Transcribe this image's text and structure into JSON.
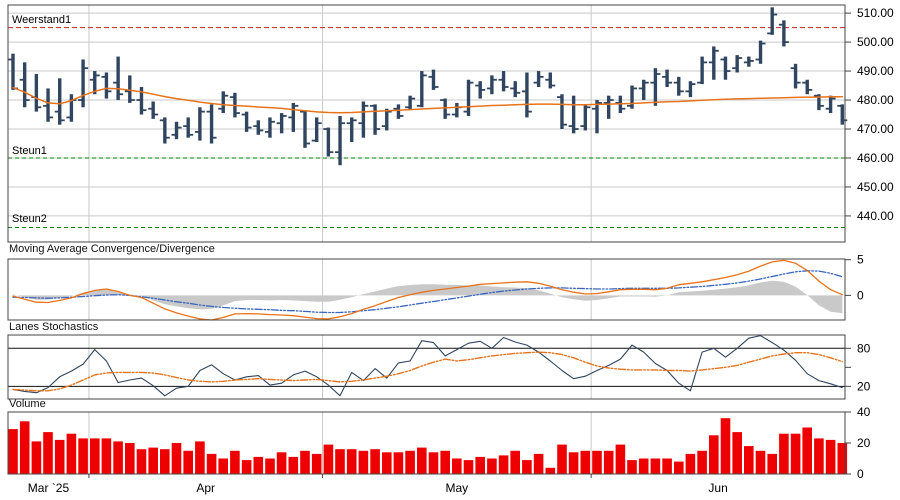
{
  "colors": {
    "bar": "#2F4560",
    "ma": "#E8731A",
    "volume": "#EE0000",
    "resistance": "#CC1F1F",
    "resistance_text": "#DC2A2A",
    "support": "#008000",
    "support_text": "#007A00",
    "macd_line": "#E8731A",
    "macd_signal": "#3A66C0",
    "macd_hist": "#C9C9C9",
    "stoch_k": "#2F4560",
    "stoch_d": "#E8731A",
    "grid": "#C9C9C9",
    "border": "#444444",
    "text": "#000000"
  },
  "chart_data": {
    "type": "ohlc",
    "panels_order": [
      "price",
      "macd",
      "stochastics",
      "volume"
    ],
    "x_axis": {
      "bar_count": 72,
      "months": [
        {
          "label": "Mar `25",
          "start_index": 0
        },
        {
          "label": "Apr",
          "start_index": 7
        },
        {
          "label": "May",
          "start_index": 27
        },
        {
          "label": "Jun",
          "start_index": 50
        }
      ]
    },
    "price_panel": {
      "y_ticks": [
        {
          "value": 510,
          "label": "510.00"
        },
        {
          "value": 500,
          "label": "500.00"
        },
        {
          "value": 490,
          "label": "490.00"
        },
        {
          "value": 480,
          "label": "480.00"
        },
        {
          "value": 470,
          "label": "470.00"
        },
        {
          "value": 460,
          "label": "460.00"
        },
        {
          "value": 450,
          "label": "450.00"
        },
        {
          "value": 440,
          "label": "440.00"
        }
      ],
      "range": [
        431,
        512.8
      ],
      "levels": {
        "resistance1": {
          "label": "Weerstand1",
          "value": 505
        },
        "support1": {
          "label": "Steun1",
          "value": 460
        },
        "support2": {
          "label": "Steun2",
          "value": 436
        }
      },
      "ohlc": [
        [
          494,
          496,
          483.5,
          484
        ],
        [
          487,
          493,
          477.5,
          480
        ],
        [
          481,
          489,
          476,
          477.5
        ],
        [
          478,
          484,
          472.5,
          474
        ],
        [
          476,
          487.5,
          471.5,
          473
        ],
        [
          474,
          482,
          472.5,
          480
        ],
        [
          480,
          494,
          477.5,
          491
        ],
        [
          487,
          490,
          482,
          488.5
        ],
        [
          488,
          489.5,
          480.5,
          483
        ],
        [
          486,
          495,
          480,
          482
        ],
        [
          483,
          488.5,
          479,
          480
        ],
        [
          480,
          484.5,
          475,
          476.5
        ],
        [
          477,
          479.5,
          473.5,
          475
        ],
        [
          473,
          474,
          465,
          467
        ],
        [
          468,
          472.5,
          466.5,
          470.5
        ],
        [
          471,
          474,
          467,
          468
        ],
        [
          469,
          477.5,
          466,
          476
        ],
        [
          476,
          478.5,
          465,
          467
        ],
        [
          477,
          483,
          475.5,
          481.5
        ],
        [
          481,
          482.5,
          474,
          475.5
        ],
        [
          475,
          476,
          469,
          470.5
        ],
        [
          471,
          473,
          468,
          469.5
        ],
        [
          469,
          474,
          467,
          472.5
        ],
        [
          472,
          475.5,
          468.5,
          474.5
        ],
        [
          474,
          479,
          469,
          478
        ],
        [
          476,
          476.5,
          463.5,
          465
        ],
        [
          466,
          474,
          465.5,
          472
        ],
        [
          470,
          470.5,
          460.5,
          462
        ],
        [
          462,
          474.5,
          457.5,
          472
        ],
        [
          472,
          474,
          465.5,
          473
        ],
        [
          472,
          479.5,
          467,
          478
        ],
        [
          478,
          478.5,
          468,
          470
        ],
        [
          471,
          477,
          469.5,
          476
        ],
        [
          477,
          478.5,
          473.5,
          474.5
        ],
        [
          477.5,
          481.5,
          476.5,
          480.5
        ],
        [
          478,
          490,
          477.5,
          488.5
        ],
        [
          488,
          490.5,
          483.5,
          484.5
        ],
        [
          480,
          480.5,
          473.5,
          475
        ],
        [
          475,
          479,
          474,
          477.5
        ],
        [
          476,
          487,
          474.5,
          486
        ],
        [
          485,
          486.5,
          480.5,
          483.5
        ],
        [
          484,
          488.5,
          482,
          487
        ],
        [
          487,
          490,
          483,
          484.5
        ],
        [
          484,
          486.5,
          481,
          482.5
        ],
        [
          483,
          489.5,
          474,
          476
        ],
        [
          486,
          490,
          484.5,
          488
        ],
        [
          487,
          489.5,
          484,
          485
        ],
        [
          481,
          482,
          470,
          471.5
        ],
        [
          471,
          481.5,
          468.5,
          470
        ],
        [
          471,
          478.5,
          469.5,
          477.5
        ],
        [
          477,
          480,
          468.5,
          479
        ],
        [
          479,
          481.5,
          473.5,
          480
        ],
        [
          479,
          481.5,
          475.5,
          477
        ],
        [
          478,
          485,
          477,
          484
        ],
        [
          484,
          487,
          480,
          486
        ],
        [
          486,
          491,
          478,
          489
        ],
        [
          488,
          490.5,
          484.5,
          486
        ],
        [
          486,
          488,
          481.5,
          483
        ],
        [
          483,
          486.5,
          481,
          485.5
        ],
        [
          486,
          495,
          485.5,
          493
        ],
        [
          493,
          498.5,
          487,
          497
        ],
        [
          494,
          495,
          487,
          490
        ],
        [
          491,
          495.5,
          489.5,
          494.5
        ],
        [
          493,
          495,
          491.5,
          493.5
        ],
        [
          494,
          500.5,
          492.5,
          499.5
        ],
        [
          503,
          512,
          502.5,
          509.5
        ],
        [
          506,
          507.5,
          498.5,
          500
        ],
        [
          491,
          492.5,
          484,
          486
        ],
        [
          486,
          487,
          482,
          483.5
        ],
        [
          481.5,
          482,
          476.5,
          478
        ],
        [
          477,
          481.5,
          475.5,
          480.5
        ],
        [
          478,
          478.5,
          471.5,
          473
        ]
      ],
      "ma": [
        484.3,
        482.7,
        480.6,
        479,
        478.7,
        479.8,
        481.6,
        483,
        484,
        483.9,
        483.4,
        482.8,
        482,
        481.2,
        480.5,
        479.9,
        479.3,
        478.8,
        478.4,
        478.1,
        477.9,
        477.6,
        477.4,
        477.1,
        476.7,
        476.3,
        475.9,
        475.7,
        475.6,
        475.7,
        475.9,
        476.1,
        476.3,
        476.5,
        476.7,
        476.9,
        477.1,
        477.3,
        477.5,
        477.7,
        477.9,
        478.1,
        478.2,
        478.4,
        478.5,
        478.6,
        478.6,
        478.5,
        478.4,
        478.4,
        478.5,
        478.6,
        478.7,
        478.8,
        479,
        479.2,
        479.4,
        479.5,
        479.7,
        479.9,
        480.1,
        480.3,
        480.4,
        480.5,
        480.6,
        480.7,
        480.8,
        480.9,
        481,
        481,
        481.1,
        481.1
      ]
    },
    "macd_panel": {
      "title": "Moving Average Convergence/Divergence",
      "y_ticks": [
        {
          "value": 5,
          "label": "5"
        },
        {
          "value": 0,
          "label": "0"
        }
      ],
      "range": [
        -3.45,
        5.1
      ],
      "macd": [
        -0.1,
        -0.55,
        -0.95,
        -1,
        -0.7,
        -0.35,
        0.25,
        0.7,
        0.9,
        0.55,
        0,
        -0.3,
        -1.1,
        -1.9,
        -2.45,
        -2.9,
        -3.3,
        -3.45,
        -3.1,
        -2.6,
        -2.55,
        -2.6,
        -2.7,
        -2.75,
        -2.85,
        -3.05,
        -3.25,
        -3.3,
        -3,
        -2.55,
        -1.95,
        -1.45,
        -0.85,
        -0.3,
        0.1,
        0.45,
        0.7,
        0.9,
        1.1,
        1.3,
        1.55,
        1.65,
        1.75,
        1.85,
        1.9,
        1.7,
        1.3,
        0.8,
        0.45,
        0.2,
        0.25,
        0.5,
        0.8,
        0.85,
        0.85,
        0.8,
        1,
        1.5,
        1.7,
        1.9,
        2.2,
        2.5,
        2.9,
        3.4,
        4.1,
        4.7,
        4.9,
        4.5,
        3.5,
        2,
        0.8,
        0.1
      ],
      "signal": [
        -0.25,
        -0.3,
        -0.35,
        -0.4,
        -0.35,
        -0.25,
        -0.15,
        -0.05,
        0.05,
        0.1,
        0,
        -0.2,
        -0.4,
        -0.65,
        -0.9,
        -1.1,
        -1.35,
        -1.55,
        -1.7,
        -1.8,
        -1.9,
        -1.95,
        -2,
        -2.1,
        -2.15,
        -2.25,
        -2.35,
        -2.4,
        -2.4,
        -2.3,
        -2.15,
        -2,
        -1.8,
        -1.6,
        -1.35,
        -1.1,
        -0.85,
        -0.6,
        -0.35,
        -0.1,
        0.15,
        0.4,
        0.6,
        0.75,
        0.9,
        1,
        1.05,
        1.05,
        1,
        0.95,
        0.9,
        0.9,
        0.95,
        1,
        1,
        1,
        1,
        1.05,
        1.15,
        1.25,
        1.4,
        1.55,
        1.75,
        2,
        2.3,
        2.65,
        3,
        3.3,
        3.45,
        3.4,
        3.1,
        2.6
      ]
    },
    "stoch_panel": {
      "title": "Lanes Stochastics",
      "y_ticks": [
        {
          "value": 80,
          "label": "80"
        },
        {
          "value": 50,
          "label": ""
        },
        {
          "value": 20,
          "label": "20"
        }
      ],
      "hlines": [
        80,
        20
      ],
      "range": [
        0,
        101
      ],
      "k": [
        15,
        12,
        10,
        18,
        35,
        44,
        55,
        78,
        60,
        26,
        30,
        33,
        21,
        5,
        17,
        20,
        45,
        54,
        40,
        30,
        35,
        37,
        22,
        25,
        38,
        44,
        35,
        22,
        5,
        42,
        29,
        48,
        33,
        57,
        60,
        92,
        89,
        68,
        78,
        88,
        91,
        80,
        97,
        90,
        85,
        74,
        60,
        45,
        32,
        36,
        45,
        53,
        63,
        85,
        74,
        56,
        45,
        25,
        13,
        74,
        80,
        66,
        80,
        96,
        100,
        89,
        77,
        61,
        40,
        29,
        24,
        18
      ],
      "d": [
        15,
        14,
        13,
        13,
        16,
        22,
        30,
        38,
        41,
        42,
        42,
        42,
        41,
        38,
        34,
        30,
        28,
        27,
        28,
        30,
        31,
        32,
        31,
        30,
        29,
        30,
        31,
        29,
        27,
        28,
        30,
        33,
        36,
        40,
        45,
        52,
        58,
        63,
        60,
        62,
        65,
        68,
        70,
        72,
        73,
        74,
        73,
        70,
        65,
        58,
        52,
        49,
        47,
        46,
        46,
        46,
        45,
        45,
        44,
        46,
        48,
        50,
        53,
        58,
        63,
        68,
        71,
        73,
        73,
        70,
        65,
        59
      ]
    },
    "volume_panel": {
      "title": "Volume",
      "y_ticks": [
        {
          "value": 40,
          "label": "40"
        },
        {
          "value": 20,
          "label": "20"
        },
        {
          "value": 0,
          "label": "0"
        }
      ],
      "range": [
        0,
        40
      ],
      "values": [
        29,
        34,
        21,
        27,
        22,
        26,
        23,
        23,
        23,
        21,
        20,
        16,
        17,
        16,
        20,
        15,
        21,
        13,
        10,
        15,
        9,
        11,
        10,
        14,
        11,
        15,
        13,
        19,
        16,
        16,
        15,
        16,
        14,
        14,
        15,
        17,
        14,
        15,
        10,
        9,
        11,
        10,
        12,
        15,
        9,
        13,
        4,
        19,
        14,
        15,
        15,
        15,
        19,
        9,
        10,
        10,
        10,
        8,
        13,
        15,
        25,
        36,
        27,
        18,
        15,
        13,
        26,
        26,
        30,
        23,
        22,
        20
      ]
    }
  }
}
